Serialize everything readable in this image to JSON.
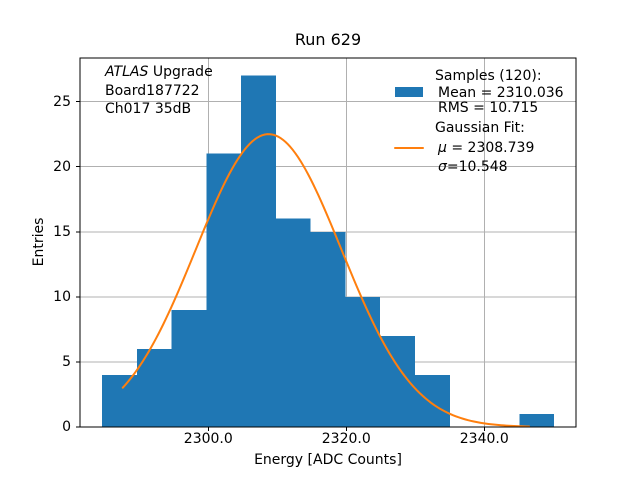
{
  "chart_data": {
    "type": "bar",
    "title": "Run 629",
    "xlabel": "Energy [ADC Counts]",
    "ylabel": "Entries",
    "xlim": [
      2281.4,
      2353.3
    ],
    "ylim": [
      0,
      28.35
    ],
    "xtick_values": [
      2300,
      2320,
      2340
    ],
    "xtick_labels": [
      "2300.0",
      "2320.0",
      "2340.0"
    ],
    "ytick_values": [
      0,
      5,
      10,
      15,
      20,
      25
    ],
    "ytick_labels": [
      "0",
      "5",
      "10",
      "15",
      "20",
      "25"
    ],
    "grid": true,
    "histogram": {
      "bin_start": 2284.6,
      "bin_width": 5.04,
      "counts": [
        4,
        6,
        9,
        21,
        27,
        16,
        15,
        10,
        7,
        4,
        0,
        0,
        1
      ],
      "color": "#1f77b4"
    },
    "gaussian_fit": {
      "mu": 2308.739,
      "sigma": 10.548,
      "peak": 22.5,
      "x_min": 2287.6,
      "x_max": 2346.5,
      "color": "#ff7f0e"
    },
    "stats": {
      "samples": 120,
      "mean": 2310.036,
      "rms": 10.715
    },
    "colors": {
      "grid": "#b0b0b0",
      "spine": "#000000",
      "background": "#ffffff",
      "text": "#000000"
    }
  },
  "annotation": {
    "line1_italic": "ATLAS",
    "line1_rest": " Upgrade",
    "line2": "Board187722",
    "line3": "Ch017 35dB"
  },
  "legend": {
    "samples_header": "Samples (120):",
    "mean_line": "Mean = 2310.036",
    "rms_line": "RMS = 10.715",
    "fit_header": "Gaussian Fit:",
    "mu_symbol": "μ",
    "mu_rest": " = 2308.739",
    "sigma_symbol": "σ",
    "sigma_rest": "=10.548"
  }
}
